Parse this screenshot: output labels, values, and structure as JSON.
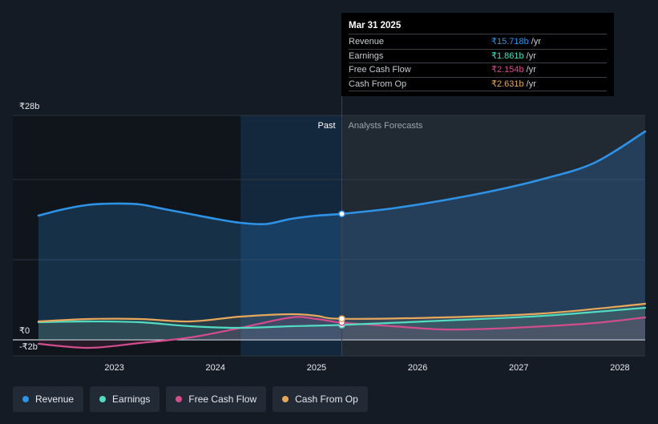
{
  "chart_data": {
    "type": "area",
    "x_axis": {
      "ticks": [
        "2023",
        "2024",
        "2025",
        "2026",
        "2027",
        "2028"
      ],
      "tick_values": [
        2023,
        2024,
        2025,
        2026,
        2027,
        2028
      ],
      "range": [
        2022.25,
        2028.25
      ]
    },
    "y_axis": {
      "ticks": [
        {
          "label": "₹28b",
          "value": 28
        },
        {
          "label": "₹0",
          "value": 0
        },
        {
          "label": "-₹2b",
          "value": -2
        }
      ],
      "gridlines": [
        28,
        20,
        10,
        0
      ],
      "range": [
        -2,
        28
      ]
    },
    "sections": {
      "past_label": "Past",
      "forecast_label": "Analysts Forecasts",
      "highlight_start": 2024.25,
      "divider_x": 2025.25
    },
    "series": [
      {
        "name": "Revenue",
        "color": "#2e93e6",
        "x": [
          2022.25,
          2022.5,
          2022.75,
          2023.0,
          2023.25,
          2023.5,
          2023.75,
          2024.0,
          2024.25,
          2024.5,
          2024.75,
          2025.0,
          2025.25,
          2025.75,
          2026.25,
          2026.75,
          2027.25,
          2027.75,
          2028.25
        ],
        "y": [
          15.5,
          16.3,
          16.85,
          17.0,
          16.9,
          16.3,
          15.7,
          15.1,
          14.6,
          14.45,
          15.1,
          15.5,
          15.718,
          16.4,
          17.4,
          18.6,
          20.1,
          22.1,
          26.0
        ]
      },
      {
        "name": "Earnings",
        "color": "#52dcc2",
        "x": [
          2022.25,
          2022.75,
          2023.25,
          2023.75,
          2024.25,
          2024.75,
          2025.25,
          2026.25,
          2027.25,
          2028.25
        ],
        "y": [
          2.2,
          2.3,
          2.2,
          1.7,
          1.5,
          1.7,
          1.861,
          2.4,
          3.0,
          4.0
        ]
      },
      {
        "name": "Free Cash Flow",
        "color": "#d14d8c",
        "x": [
          2022.25,
          2022.75,
          2023.25,
          2023.75,
          2024.25,
          2024.75,
          2025.0,
          2025.25,
          2025.75,
          2026.25,
          2026.75,
          2027.25,
          2027.75,
          2028.25
        ],
        "y": [
          -0.5,
          -1.0,
          -0.4,
          0.3,
          1.5,
          2.8,
          2.6,
          2.154,
          1.7,
          1.3,
          1.4,
          1.7,
          2.1,
          2.8
        ]
      },
      {
        "name": "Cash From Op",
        "color": "#e8a85c",
        "x": [
          2022.25,
          2022.75,
          2023.25,
          2023.75,
          2024.25,
          2024.75,
          2025.0,
          2025.25,
          2026.25,
          2027.25,
          2028.25
        ],
        "y": [
          2.3,
          2.6,
          2.6,
          2.3,
          2.9,
          3.2,
          3.0,
          2.631,
          2.8,
          3.3,
          4.5
        ]
      }
    ],
    "tooltip": {
      "date": "Mar 31 2025",
      "x": 2025.25,
      "rows": [
        {
          "label": "Revenue",
          "value": "₹15.718b",
          "unit": "/yr",
          "color": "#2e93e6"
        },
        {
          "label": "Earnings",
          "value": "₹1.861b",
          "unit": "/yr",
          "color": "#52dcc2"
        },
        {
          "label": "Free Cash Flow",
          "value": "₹2.154b",
          "unit": "/yr",
          "color": "#d14d8c"
        },
        {
          "label": "Cash From Op",
          "value": "₹2.631b",
          "unit": "/yr",
          "color": "#e8a85c"
        }
      ]
    }
  },
  "legend": [
    {
      "label": "Revenue",
      "color": "#2e93e6"
    },
    {
      "label": "Earnings",
      "color": "#52dcc2"
    },
    {
      "label": "Free Cash Flow",
      "color": "#d14d8c"
    },
    {
      "label": "Cash From Op",
      "color": "#e8a85c"
    }
  ]
}
